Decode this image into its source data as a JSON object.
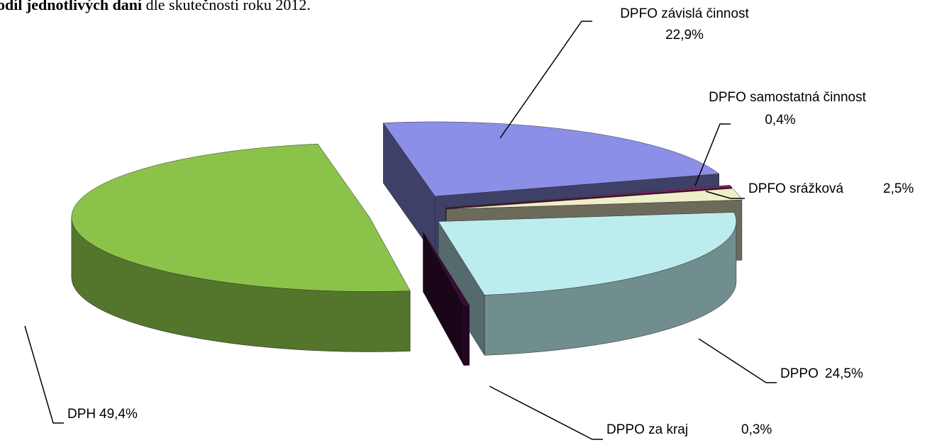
{
  "chart_data": {
    "type": "pie3d",
    "title_bold": "odíl jednotlivých daní",
    "title_rest": "dle skutečnosti roku 2012.",
    "categories": [
      "DPFO závislá činnost",
      "DPFO samostatná činnost",
      "DPFO srážková",
      "DPPO",
      "DPPO za kraj",
      "DPH"
    ],
    "values": [
      22.9,
      0.4,
      2.5,
      24.5,
      0.3,
      49.4
    ],
    "value_labels": [
      "22,9%",
      "0,4%",
      "2,5%",
      "24,5%",
      "0,3%",
      "49,4%"
    ],
    "colors": [
      "#8b8fe8",
      "#8a1e6a",
      "#f0eec8",
      "#bdecef",
      "#3a0a38",
      "#8bc34a"
    ]
  }
}
